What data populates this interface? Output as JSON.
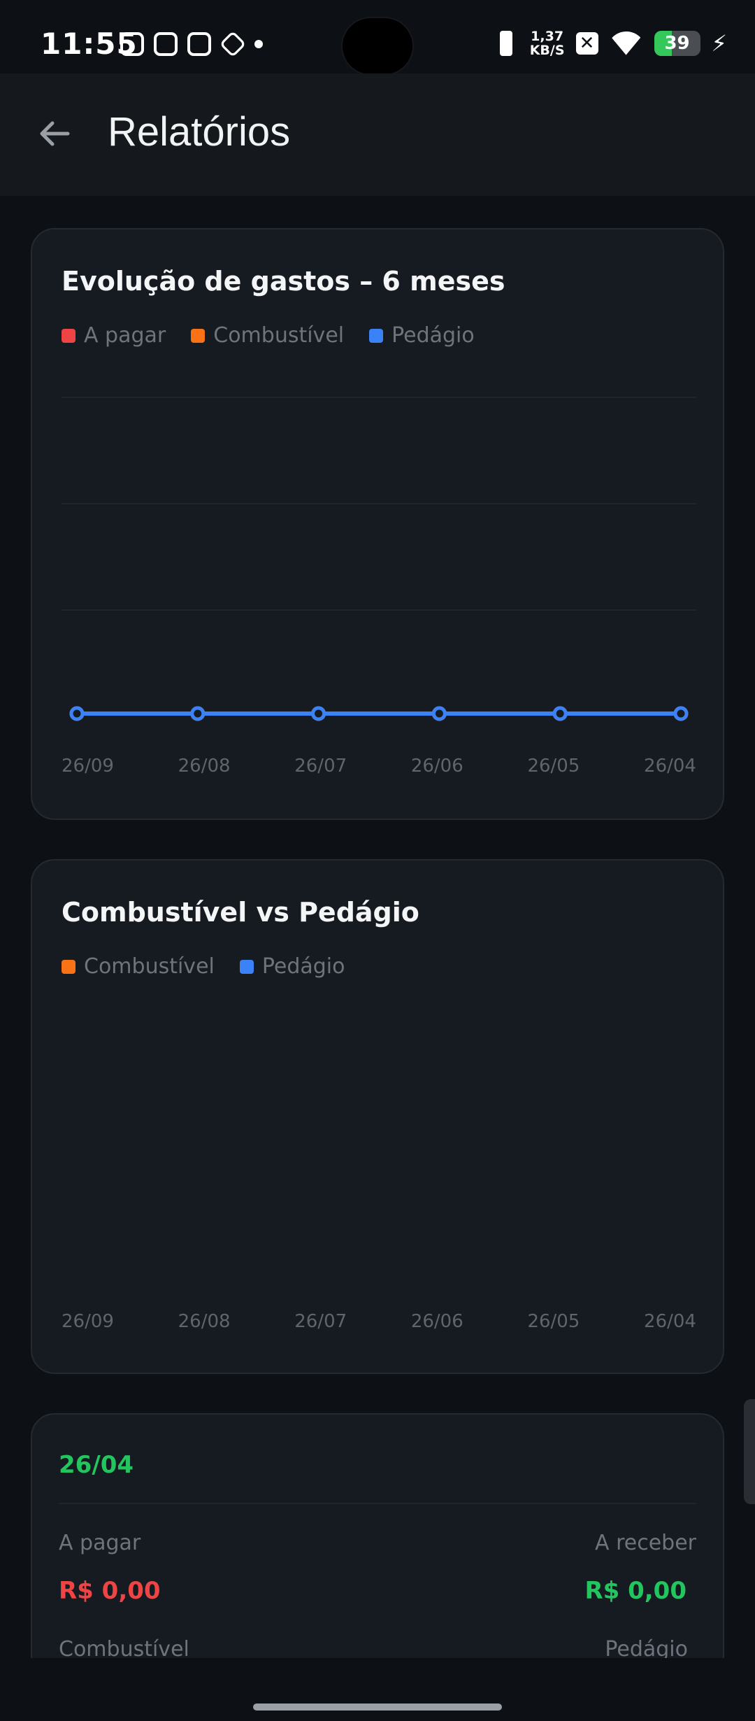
{
  "status_bar": {
    "time": "11:55",
    "netspeed_value": "1,37",
    "netspeed_unit": "KB/S",
    "battery_level": "39",
    "battery_fraction": 0.39
  },
  "header": {
    "title": "Relatórios",
    "back_icon": "arrow-left-icon"
  },
  "colors": {
    "a_pagar": "#ef4444",
    "combustivel": "#f97316",
    "pedagio": "#3b82f6",
    "receber": "#22c55e"
  },
  "card_evolucao": {
    "title": "Evolução de gastos – 6 meses",
    "legend": [
      {
        "label": "A pagar",
        "color": "#ef4444"
      },
      {
        "label": "Combustível",
        "color": "#f97316"
      },
      {
        "label": "Pedágio",
        "color": "#3b82f6"
      }
    ]
  },
  "card_comb_ped": {
    "title": "Combustível vs Pedágio",
    "legend": [
      {
        "label": "Combustível",
        "color": "#f97316"
      },
      {
        "label": "Pedágio",
        "color": "#3b82f6"
      }
    ]
  },
  "chart_data": [
    {
      "type": "line",
      "title": "Evolução de gastos – 6 meses",
      "categories": [
        "26/09",
        "26/08",
        "26/07",
        "26/06",
        "26/05",
        "26/04"
      ],
      "series": [
        {
          "name": "A pagar",
          "values": [
            0,
            0,
            0,
            0,
            0,
            0
          ]
        },
        {
          "name": "Combustível",
          "values": [
            0,
            0,
            0,
            0,
            0,
            0
          ]
        },
        {
          "name": "Pedágio",
          "values": [
            0,
            0,
            0,
            0,
            0,
            0
          ]
        }
      ],
      "grid": true,
      "legend": "top-left"
    },
    {
      "type": "bar",
      "title": "Combustível vs Pedágio",
      "categories": [
        "26/09",
        "26/08",
        "26/07",
        "26/06",
        "26/05",
        "26/04"
      ],
      "series": [
        {
          "name": "Combustível",
          "values": [
            0,
            0,
            0,
            0,
            0,
            0
          ]
        },
        {
          "name": "Pedágio",
          "values": [
            0,
            0,
            0,
            0,
            0,
            0
          ]
        }
      ],
      "grid": false,
      "legend": "top-left"
    }
  ],
  "summary": {
    "date": "26/04",
    "a_pagar_label": "A pagar",
    "a_pagar_value": "R$ 0,00",
    "a_receber_label": "A receber",
    "a_receber_value": "R$ 0,00",
    "combustivel_label": "Combustível",
    "pedagio_label": "Pedágio"
  }
}
